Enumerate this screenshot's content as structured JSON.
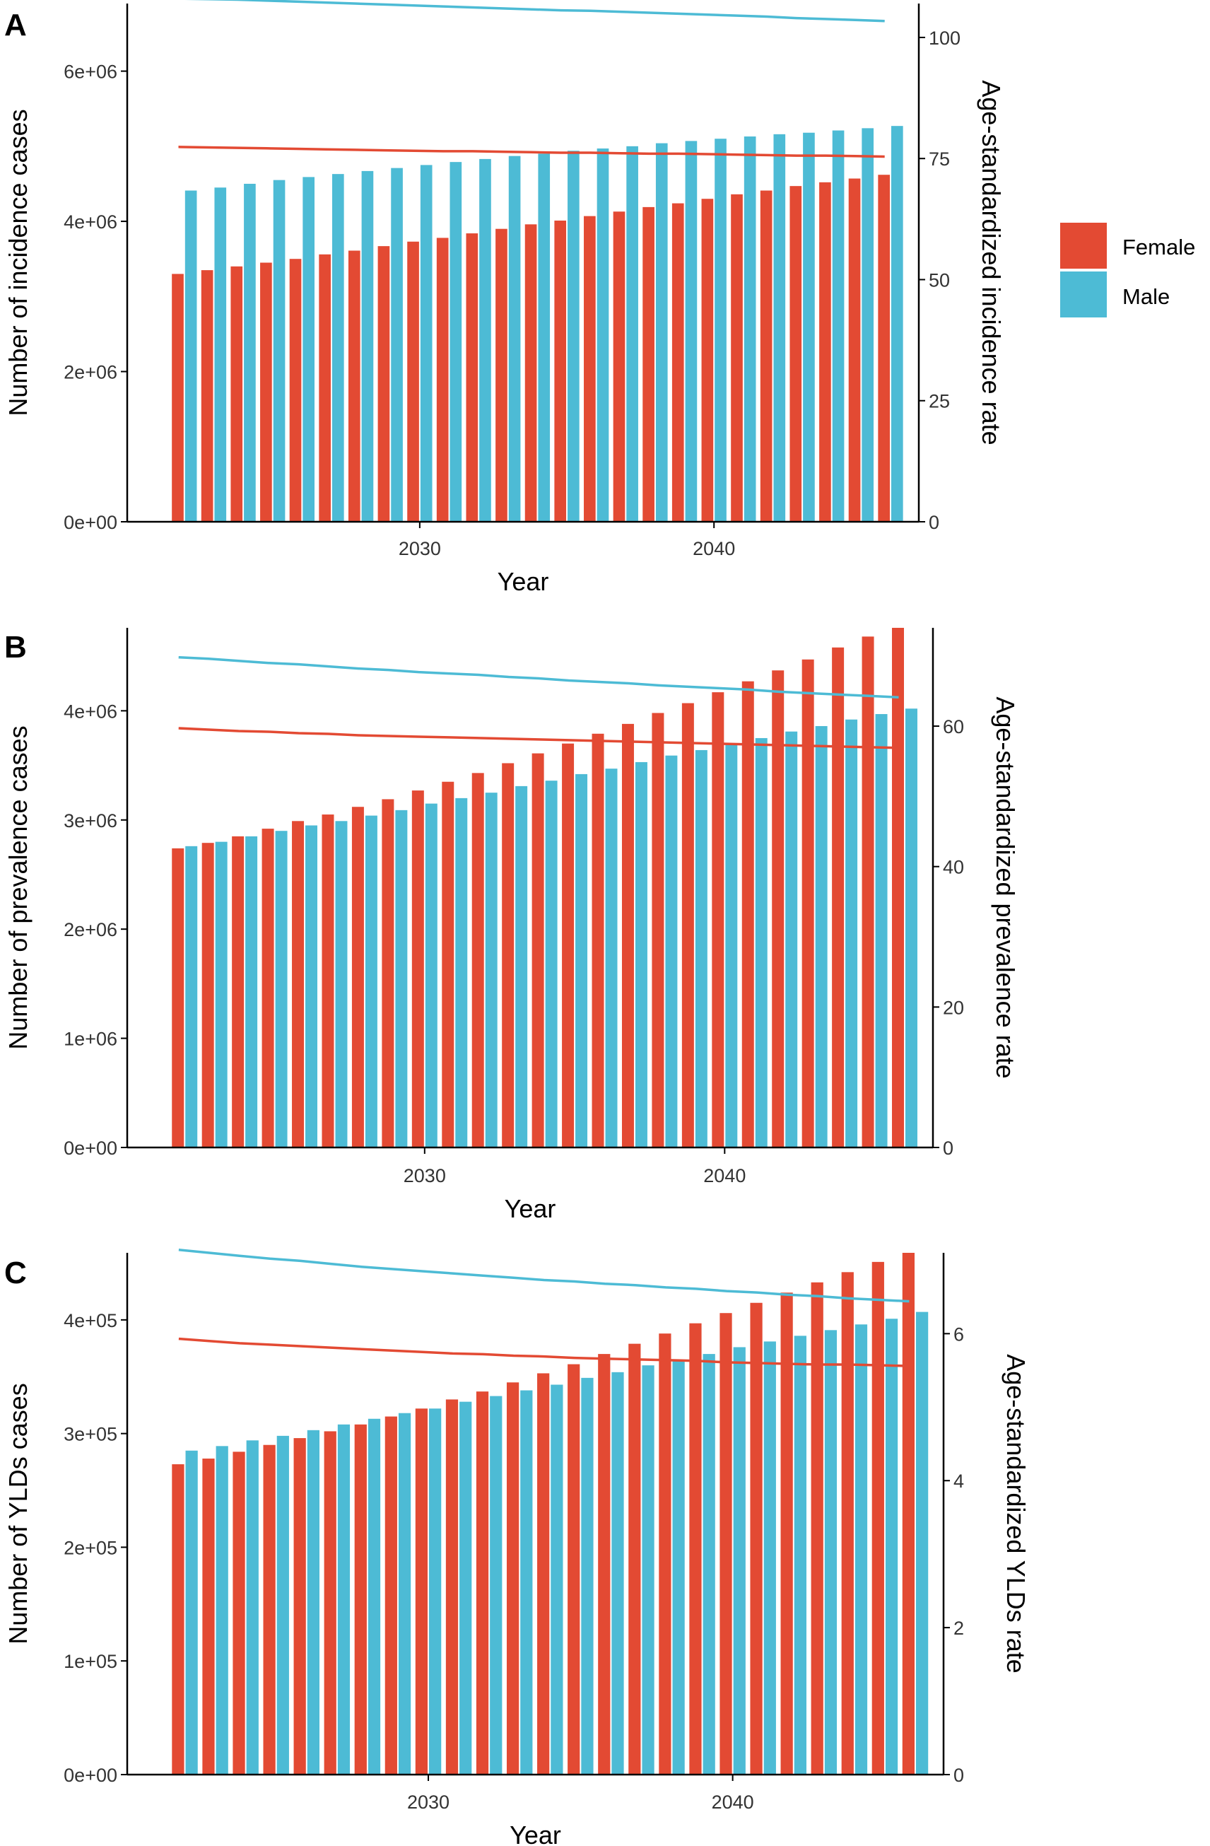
{
  "colors": {
    "female": "#E34A33",
    "male": "#4DBBD5",
    "axis": "#000000"
  },
  "legend": {
    "items": [
      {
        "label": "Female",
        "color": "#E34A33"
      },
      {
        "label": "Male",
        "color": "#4DBBD5"
      }
    ]
  },
  "chart_data": [
    {
      "panel": "A",
      "type": "bar",
      "xlabel": "Year",
      "ylabel": "Number of incidence cases",
      "y2label": "Age-standardized incidence rate",
      "x_ticks": [
        "2030",
        "2040"
      ],
      "y_ticks": [
        "0e+00",
        "2e+06",
        "4e+06",
        "6e+06"
      ],
      "y2_ticks": [
        "0",
        "25",
        "50",
        "75",
        "100"
      ],
      "ylim": [
        0,
        6900000
      ],
      "y2lim": [
        0,
        107
      ],
      "categories": [
        2022,
        2023,
        2024,
        2025,
        2026,
        2027,
        2028,
        2029,
        2030,
        2031,
        2032,
        2033,
        2034,
        2035,
        2036,
        2037,
        2038,
        2039,
        2040,
        2041,
        2042,
        2043,
        2044,
        2045,
        2046
      ],
      "series": [
        {
          "name": "Female",
          "kind": "bar",
          "values": [
            3300000,
            3350000,
            3400000,
            3450000,
            3500000,
            3560000,
            3610000,
            3670000,
            3730000,
            3780000,
            3840000,
            3900000,
            3960000,
            4010000,
            4070000,
            4130000,
            4190000,
            4240000,
            4300000,
            4360000,
            4410000,
            4470000,
            4520000,
            4570000,
            4620000
          ]
        },
        {
          "name": "Male",
          "kind": "bar",
          "values": [
            4410000,
            4450000,
            4500000,
            4550000,
            4590000,
            4630000,
            4670000,
            4710000,
            4750000,
            4790000,
            4830000,
            4870000,
            4900000,
            4940000,
            4970000,
            5000000,
            5040000,
            5070000,
            5100000,
            5130000,
            5160000,
            5180000,
            5210000,
            5240000,
            5270000
          ]
        },
        {
          "name": "Female",
          "kind": "line",
          "values": [
            77.4,
            77.3,
            77.2,
            77.1,
            77.0,
            76.9,
            76.8,
            76.7,
            76.6,
            76.5,
            76.5,
            76.4,
            76.3,
            76.2,
            76.2,
            76.1,
            76.0,
            76.0,
            75.9,
            75.8,
            75.7,
            75.6,
            75.6,
            75.5,
            75.4
          ]
        },
        {
          "name": "Male",
          "kind": "line",
          "values": [
            108.0,
            107.9,
            107.8,
            107.6,
            107.4,
            107.2,
            107.0,
            106.8,
            106.6,
            106.4,
            106.2,
            106.0,
            105.8,
            105.6,
            105.5,
            105.3,
            105.1,
            104.9,
            104.7,
            104.5,
            104.3,
            104.0,
            103.8,
            103.6,
            103.4
          ]
        }
      ]
    },
    {
      "panel": "B",
      "type": "bar",
      "xlabel": "Year",
      "ylabel": "Number of prevalence cases",
      "y2label": "Age-standardized prevalence rate",
      "x_ticks": [
        "2030",
        "2040"
      ],
      "y_ticks": [
        "0e+00",
        "1e+06",
        "2e+06",
        "3e+06",
        "4e+06"
      ],
      "y2_ticks": [
        "0",
        "20",
        "40",
        "60"
      ],
      "ylim": [
        0,
        4760000
      ],
      "y2lim": [
        0,
        74
      ],
      "categories": [
        2022,
        2023,
        2024,
        2025,
        2026,
        2027,
        2028,
        2029,
        2030,
        2031,
        2032,
        2033,
        2034,
        2035,
        2036,
        2037,
        2038,
        2039,
        2040,
        2041,
        2042,
        2043,
        2044,
        2045,
        2046
      ],
      "series": [
        {
          "name": "Female",
          "kind": "bar",
          "values": [
            2740000,
            2790000,
            2850000,
            2920000,
            2990000,
            3050000,
            3120000,
            3190000,
            3270000,
            3350000,
            3430000,
            3520000,
            3610000,
            3700000,
            3790000,
            3880000,
            3980000,
            4070000,
            4170000,
            4270000,
            4370000,
            4470000,
            4580000,
            4680000,
            4760000
          ]
        },
        {
          "name": "Male",
          "kind": "bar",
          "values": [
            2760000,
            2800000,
            2850000,
            2900000,
            2950000,
            2990000,
            3040000,
            3090000,
            3150000,
            3200000,
            3250000,
            3310000,
            3360000,
            3420000,
            3470000,
            3530000,
            3590000,
            3640000,
            3700000,
            3750000,
            3810000,
            3860000,
            3920000,
            3970000,
            4020000
          ]
        },
        {
          "name": "Female",
          "kind": "line",
          "values": [
            59.7,
            59.5,
            59.3,
            59.2,
            59.0,
            58.9,
            58.7,
            58.6,
            58.5,
            58.4,
            58.3,
            58.2,
            58.1,
            58.0,
            57.9,
            57.8,
            57.7,
            57.6,
            57.5,
            57.4,
            57.3,
            57.2,
            57.1,
            57.0,
            56.9
          ]
        },
        {
          "name": "Male",
          "kind": "line",
          "values": [
            69.8,
            69.6,
            69.3,
            69.0,
            68.8,
            68.5,
            68.2,
            68.0,
            67.7,
            67.5,
            67.3,
            67.0,
            66.8,
            66.5,
            66.3,
            66.1,
            65.8,
            65.6,
            65.4,
            65.2,
            64.9,
            64.7,
            64.5,
            64.3,
            64.1
          ]
        }
      ]
    },
    {
      "panel": "C",
      "type": "bar",
      "xlabel": "Year",
      "ylabel": "Number of YLDs cases",
      "y2label": "Age-standardized YLDs rate",
      "x_ticks": [
        "2030",
        "2040"
      ],
      "y_ticks": [
        "0e+00",
        "1e+05",
        "2e+05",
        "3e+05",
        "4e+05"
      ],
      "y2_ticks": [
        "0",
        "2",
        "4",
        "6"
      ],
      "ylim": [
        0,
        459000
      ],
      "y2lim": [
        0,
        7.1
      ],
      "categories": [
        2022,
        2023,
        2024,
        2025,
        2026,
        2027,
        2028,
        2029,
        2030,
        2031,
        2032,
        2033,
        2034,
        2035,
        2036,
        2037,
        2038,
        2039,
        2040,
        2041,
        2042,
        2043,
        2044,
        2045,
        2046
      ],
      "series": [
        {
          "name": "Female",
          "kind": "bar",
          "values": [
            273000,
            278000,
            284000,
            290000,
            296000,
            302000,
            308000,
            315000,
            322000,
            330000,
            337000,
            345000,
            353000,
            361000,
            370000,
            379000,
            388000,
            397000,
            406000,
            415000,
            424000,
            433000,
            442000,
            451000,
            459000
          ]
        },
        {
          "name": "Male",
          "kind": "bar",
          "values": [
            285000,
            289000,
            294000,
            298000,
            303000,
            308000,
            313000,
            318000,
            322000,
            328000,
            333000,
            338000,
            343000,
            349000,
            354000,
            360000,
            365000,
            370000,
            376000,
            381000,
            386000,
            391000,
            396000,
            401000,
            407000
          ]
        },
        {
          "name": "Female",
          "kind": "line",
          "values": [
            5.93,
            5.9,
            5.87,
            5.85,
            5.83,
            5.81,
            5.79,
            5.77,
            5.75,
            5.73,
            5.72,
            5.7,
            5.69,
            5.67,
            5.66,
            5.65,
            5.64,
            5.63,
            5.61,
            5.6,
            5.59,
            5.58,
            5.58,
            5.57,
            5.56
          ]
        },
        {
          "name": "Male",
          "kind": "line",
          "values": [
            7.14,
            7.1,
            7.06,
            7.02,
            6.99,
            6.95,
            6.91,
            6.88,
            6.85,
            6.82,
            6.79,
            6.76,
            6.73,
            6.71,
            6.68,
            6.66,
            6.63,
            6.61,
            6.58,
            6.56,
            6.53,
            6.51,
            6.48,
            6.46,
            6.44
          ]
        }
      ]
    }
  ]
}
